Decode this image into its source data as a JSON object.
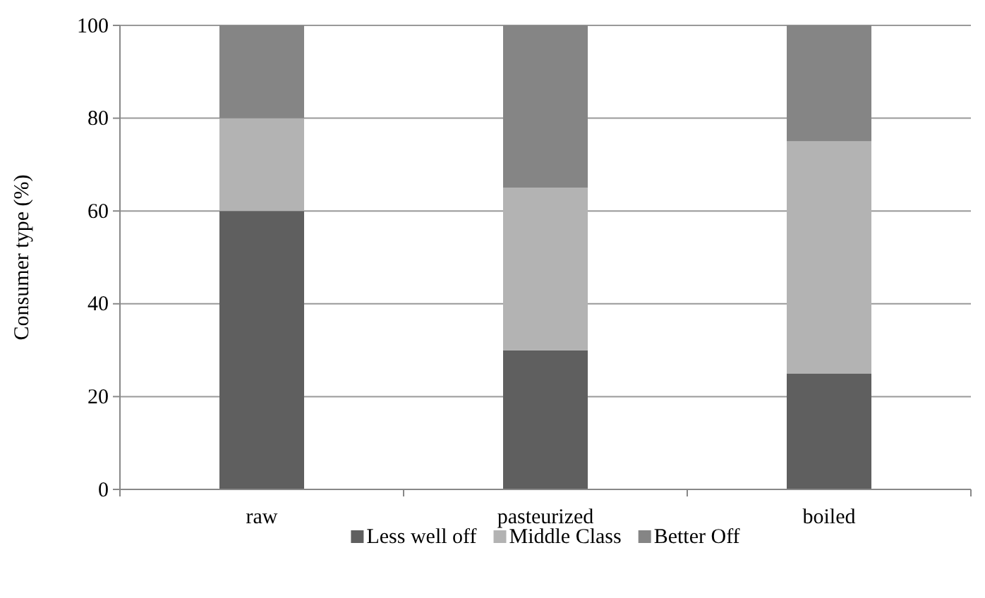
{
  "chart_data": {
    "type": "bar",
    "stacked": true,
    "ylabel": "Consumer type (%)",
    "categories": [
      "raw",
      "pasteurized",
      "boiled"
    ],
    "series": [
      {
        "name": "Less well off",
        "color": "#5f5f5f",
        "values": [
          60,
          30,
          25
        ]
      },
      {
        "name": "Middle Class",
        "color": "#b3b3b3",
        "values": [
          20,
          35,
          50
        ]
      },
      {
        "name": "Better Off",
        "color": "#858585",
        "values": [
          20,
          35,
          25
        ]
      }
    ],
    "ylim": [
      0,
      100
    ],
    "yticks": [
      0,
      20,
      40,
      60,
      80,
      100
    ],
    "grid": "y",
    "legend": "bottom"
  }
}
